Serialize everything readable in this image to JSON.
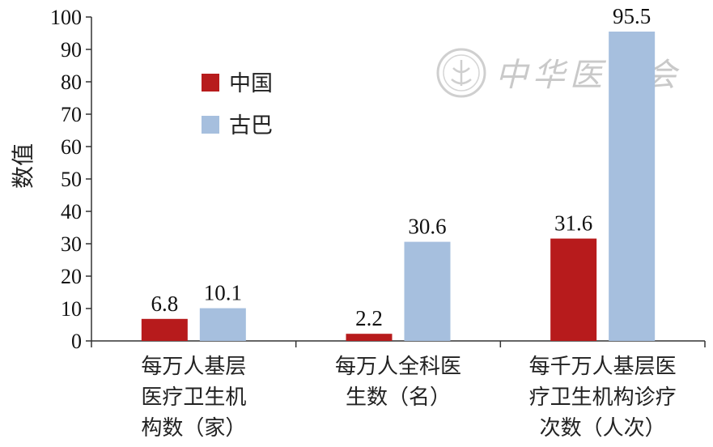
{
  "watermark": {
    "text": "中华医学会",
    "seal_icon": "medical-association-seal-icon"
  },
  "chart_data": {
    "type": "bar",
    "ylabel": "数值",
    "ylim": [
      0,
      100
    ],
    "yticks": [
      0,
      10,
      20,
      30,
      40,
      50,
      60,
      70,
      80,
      90,
      100
    ],
    "categories": [
      [
        "每万人基层",
        "医疗卫生机",
        "构数（家）"
      ],
      [
        "每万人全科医",
        "生数（名）"
      ],
      [
        "每千万人基层医",
        "疗卫生机构诊疗",
        "次数（人次）"
      ]
    ],
    "series": [
      {
        "name": "中国",
        "color": "#b71b1c",
        "values": [
          6.8,
          2.2,
          31.6
        ]
      },
      {
        "name": "古巴",
        "color": "#a6bfde",
        "values": [
          10.1,
          30.6,
          95.5
        ]
      }
    ],
    "legend_position": "top-left",
    "grid": false
  }
}
